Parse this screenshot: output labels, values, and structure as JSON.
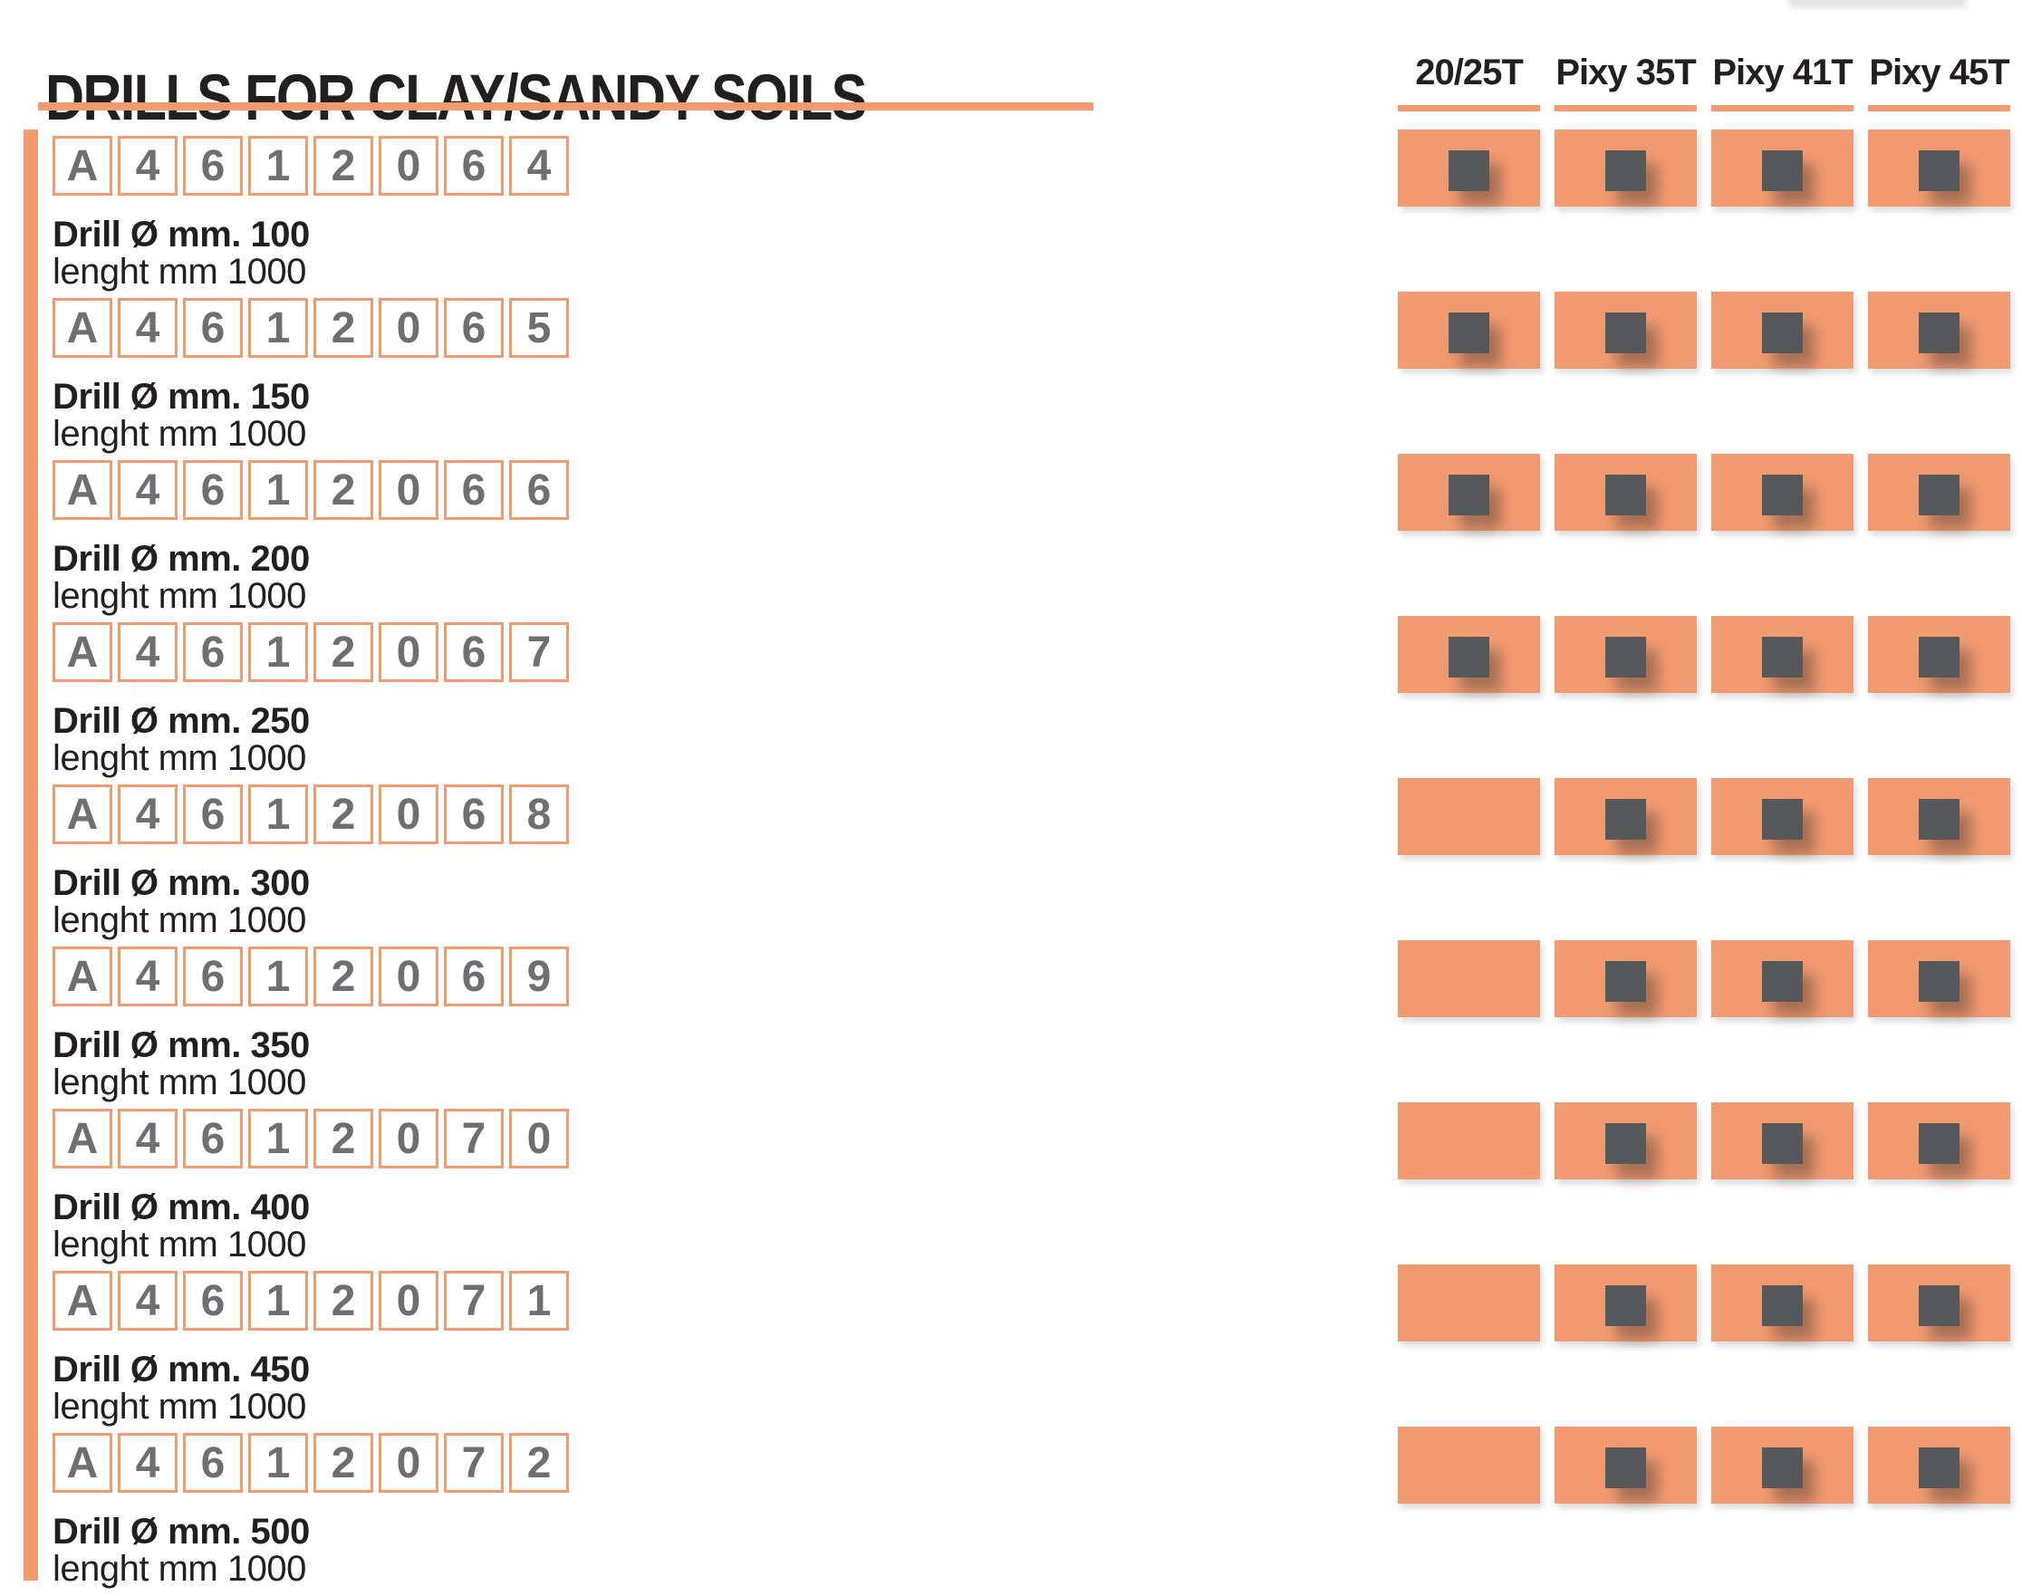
{
  "header": {
    "title": "DRILLS FOR CLAY/SANDY SOILS"
  },
  "columns": [
    {
      "label": "20/25T"
    },
    {
      "label": "Pixy 35T"
    },
    {
      "label": "Pixy 41T"
    },
    {
      "label": "Pixy 45T"
    }
  ],
  "rows": [
    {
      "code": "A4612064",
      "name": "Drill Ø mm. 100",
      "length": "lenght mm 1000",
      "compat": [
        true,
        true,
        true,
        true
      ]
    },
    {
      "code": "A4612065",
      "name": "Drill Ø mm. 150",
      "length": "lenght mm 1000",
      "compat": [
        true,
        true,
        true,
        true
      ]
    },
    {
      "code": "A4612066",
      "name": "Drill Ø mm. 200",
      "length": "lenght mm 1000",
      "compat": [
        true,
        true,
        true,
        true
      ]
    },
    {
      "code": "A4612067",
      "name": "Drill Ø mm. 250",
      "length": "lenght mm 1000",
      "compat": [
        true,
        true,
        true,
        true
      ]
    },
    {
      "code": "A4612068",
      "name": "Drill Ø mm. 300",
      "length": "lenght mm 1000",
      "compat": [
        false,
        true,
        true,
        true
      ]
    },
    {
      "code": "A4612069",
      "name": "Drill Ø mm. 350",
      "length": "lenght mm 1000",
      "compat": [
        false,
        true,
        true,
        true
      ]
    },
    {
      "code": "A4612070",
      "name": "Drill Ø mm. 400",
      "length": "lenght mm 1000",
      "compat": [
        false,
        true,
        true,
        true
      ]
    },
    {
      "code": "A4612071",
      "name": "Drill Ø mm. 450",
      "length": "lenght mm 1000",
      "compat": [
        false,
        true,
        true,
        true
      ]
    },
    {
      "code": "A4612072",
      "name": "Drill Ø mm. 500",
      "length": "lenght mm 1000",
      "compat": [
        false,
        true,
        true,
        true
      ]
    }
  ],
  "colors": {
    "accent_orange": "#F29A70",
    "marker_grey": "#57585A",
    "text_black": "#231F20",
    "code_grey": "#6E6F72"
  }
}
